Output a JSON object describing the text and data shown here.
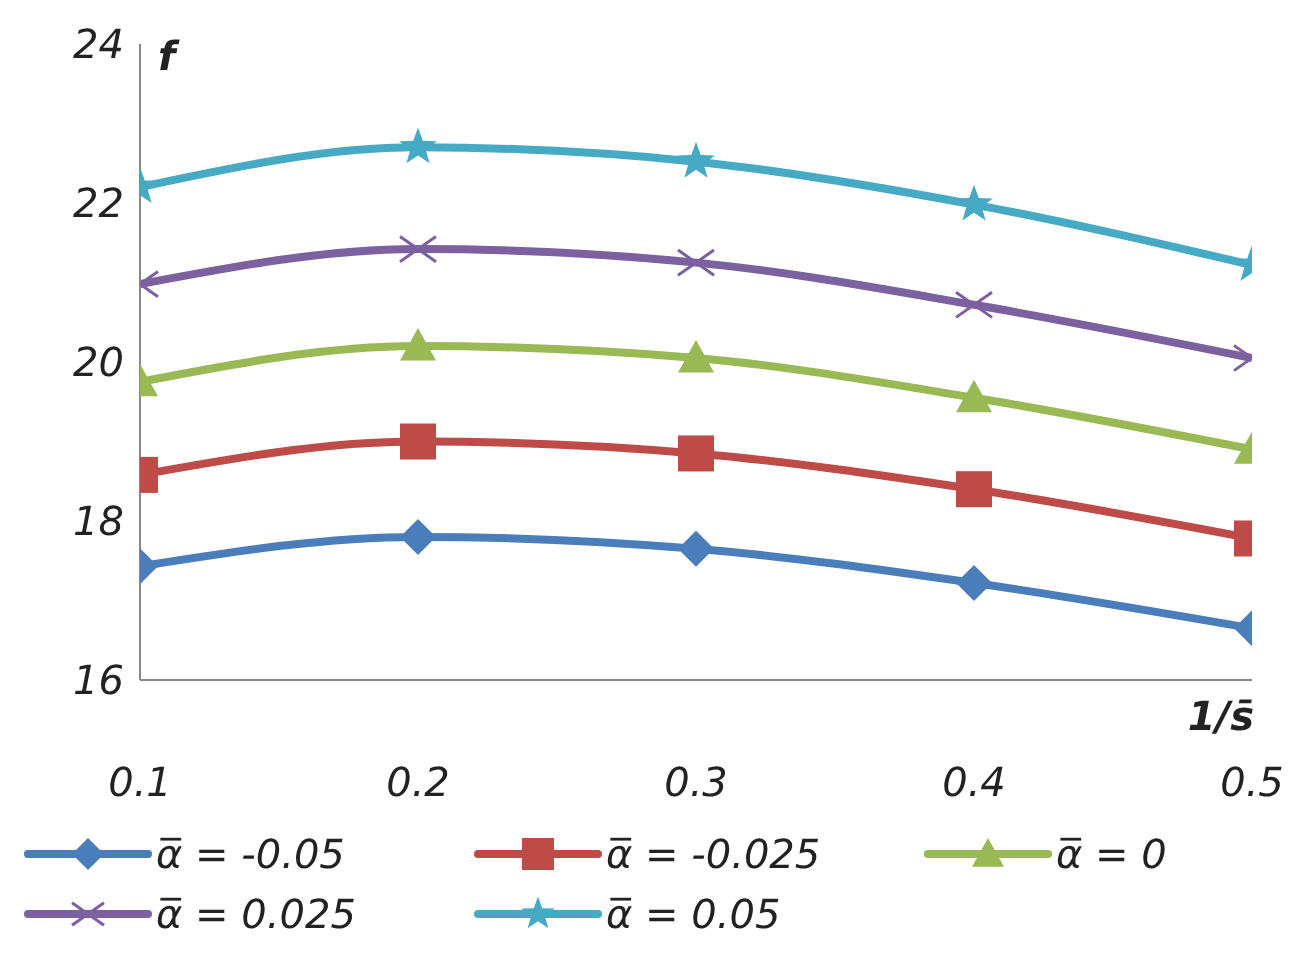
{
  "chart_data": {
    "type": "line",
    "xlabel": "1/s̄",
    "ylabel": "f",
    "x": [
      0.1,
      0.2,
      0.3,
      0.4,
      0.5
    ],
    "xlim": [
      0.1,
      0.5
    ],
    "xticks": [
      0.1,
      0.2,
      0.3,
      0.4,
      0.5
    ],
    "ylim": [
      16,
      24
    ],
    "yticks": [
      16,
      18,
      20,
      22,
      24
    ],
    "grid": false,
    "legend": "bottom",
    "series": [
      {
        "name": "α̅ = -0.05",
        "color": "#4a7ebb",
        "marker": "diamond",
        "values": [
          17.43,
          17.8,
          17.65,
          17.22,
          16.65
        ]
      },
      {
        "name": "α̅ = -0.025",
        "color": "#be4b48",
        "marker": "square",
        "values": [
          18.58,
          19.0,
          18.85,
          18.4,
          17.78
        ]
      },
      {
        "name": "α̅ = 0",
        "color": "#98b954",
        "marker": "triangle",
        "values": [
          19.75,
          20.2,
          20.05,
          19.55,
          18.9
        ]
      },
      {
        "name": "α̅ = 0.025",
        "color": "#7d60a0",
        "marker": "cross",
        "values": [
          20.98,
          21.42,
          21.25,
          20.72,
          20.05
        ]
      },
      {
        "name": "α̅ = 0.05",
        "color": "#46aac5",
        "marker": "star",
        "values": [
          22.2,
          22.7,
          22.52,
          21.98,
          21.22
        ]
      }
    ]
  }
}
